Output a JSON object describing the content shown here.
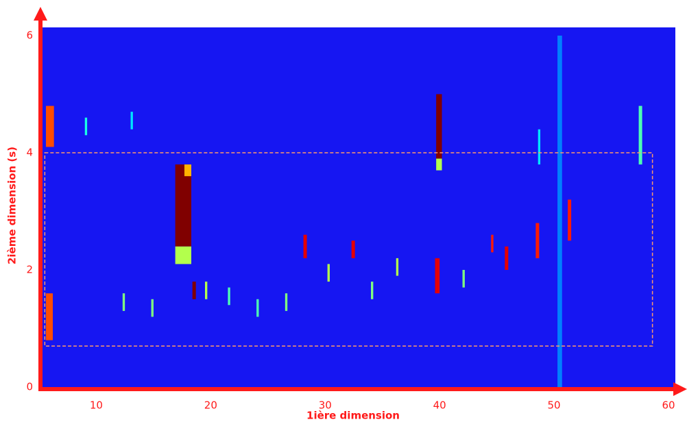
{
  "chart_data": {
    "type": "heatmap",
    "xlabel": "1ière dimension",
    "ylabel": "2ième  dimension (s)",
    "xlim": [
      5.3,
      60.6
    ],
    "ylim": [
      0,
      6.14
    ],
    "xticks": [
      10,
      20,
      30,
      40,
      50,
      60
    ],
    "yticks": [
      0,
      2,
      4,
      6
    ],
    "background": "#1616f2",
    "axis_color": "#ff1a1a",
    "box_color": "#ff9a6a",
    "highlight_box": {
      "x": [
        5.5,
        58.6
      ],
      "y": [
        0.7,
        4.0
      ]
    },
    "streaks": [
      {
        "x": [
          16.9,
          18.3
        ],
        "y": [
          2.4,
          3.8
        ],
        "v": 1.0
      },
      {
        "x": [
          16.9,
          18.3
        ],
        "y": [
          2.1,
          2.4
        ],
        "v": 0.55
      },
      {
        "x": [
          17.7,
          18.3
        ],
        "y": [
          3.6,
          3.8
        ],
        "v": 0.7
      },
      {
        "x": [
          39.7,
          40.2
        ],
        "y": [
          3.9,
          5.0
        ],
        "v": 1.0
      },
      {
        "x": [
          39.7,
          40.2
        ],
        "y": [
          3.7,
          3.9
        ],
        "v": 0.55
      },
      {
        "x": [
          5.6,
          6.2
        ],
        "y": [
          0.8,
          1.6
        ],
        "v": 0.8
      },
      {
        "x": [
          5.6,
          6.3
        ],
        "y": [
          4.1,
          4.8
        ],
        "v": 0.8
      },
      {
        "x": [
          18.4,
          18.7
        ],
        "y": [
          1.5,
          1.8
        ],
        "v": 1.0
      },
      {
        "x": [
          28.1,
          28.4
        ],
        "y": [
          2.2,
          2.6
        ],
        "v": 0.9
      },
      {
        "x": [
          32.3,
          32.6
        ],
        "y": [
          2.2,
          2.5
        ],
        "v": 0.9
      },
      {
        "x": [
          39.6,
          40.0
        ],
        "y": [
          1.6,
          2.2
        ],
        "v": 0.9
      },
      {
        "x": [
          45.7,
          46.0
        ],
        "y": [
          2.0,
          2.4
        ],
        "v": 0.9
      },
      {
        "x": [
          48.4,
          48.7
        ],
        "y": [
          2.2,
          2.8
        ],
        "v": 0.85
      },
      {
        "x": [
          51.2,
          51.5
        ],
        "y": [
          2.5,
          3.2
        ],
        "v": 0.85
      },
      {
        "x": [
          57.4,
          57.7
        ],
        "y": [
          3.8,
          4.8
        ],
        "v": 0.45
      },
      {
        "x": [
          50.3,
          50.7
        ],
        "y": [
          0.0,
          6.0
        ],
        "v": 0.25
      },
      {
        "x": [
          12.3,
          12.5
        ],
        "y": [
          1.3,
          1.6
        ],
        "v": 0.5
      },
      {
        "x": [
          14.8,
          15.0
        ],
        "y": [
          1.2,
          1.5
        ],
        "v": 0.5
      },
      {
        "x": [
          19.5,
          19.7
        ],
        "y": [
          1.5,
          1.8
        ],
        "v": 0.55
      },
      {
        "x": [
          21.5,
          21.7
        ],
        "y": [
          1.4,
          1.7
        ],
        "v": 0.45
      },
      {
        "x": [
          24.0,
          24.2
        ],
        "y": [
          1.2,
          1.5
        ],
        "v": 0.45
      },
      {
        "x": [
          26.5,
          26.7
        ],
        "y": [
          1.3,
          1.6
        ],
        "v": 0.5
      },
      {
        "x": [
          30.2,
          30.4
        ],
        "y": [
          1.8,
          2.1
        ],
        "v": 0.55
      },
      {
        "x": [
          34.0,
          34.2
        ],
        "y": [
          1.5,
          1.8
        ],
        "v": 0.5
      },
      {
        "x": [
          36.2,
          36.4
        ],
        "y": [
          1.9,
          2.2
        ],
        "v": 0.55
      },
      {
        "x": [
          42.0,
          42.2
        ],
        "y": [
          1.7,
          2.0
        ],
        "v": 0.5
      },
      {
        "x": [
          44.5,
          44.7
        ],
        "y": [
          2.3,
          2.6
        ],
        "v": 0.85
      },
      {
        "x": [
          9.0,
          9.2
        ],
        "y": [
          4.3,
          4.6
        ],
        "v": 0.4
      },
      {
        "x": [
          13.0,
          13.2
        ],
        "y": [
          4.4,
          4.7
        ],
        "v": 0.35
      },
      {
        "x": [
          48.6,
          48.8
        ],
        "y": [
          3.8,
          4.4
        ],
        "v": 0.35
      }
    ]
  }
}
